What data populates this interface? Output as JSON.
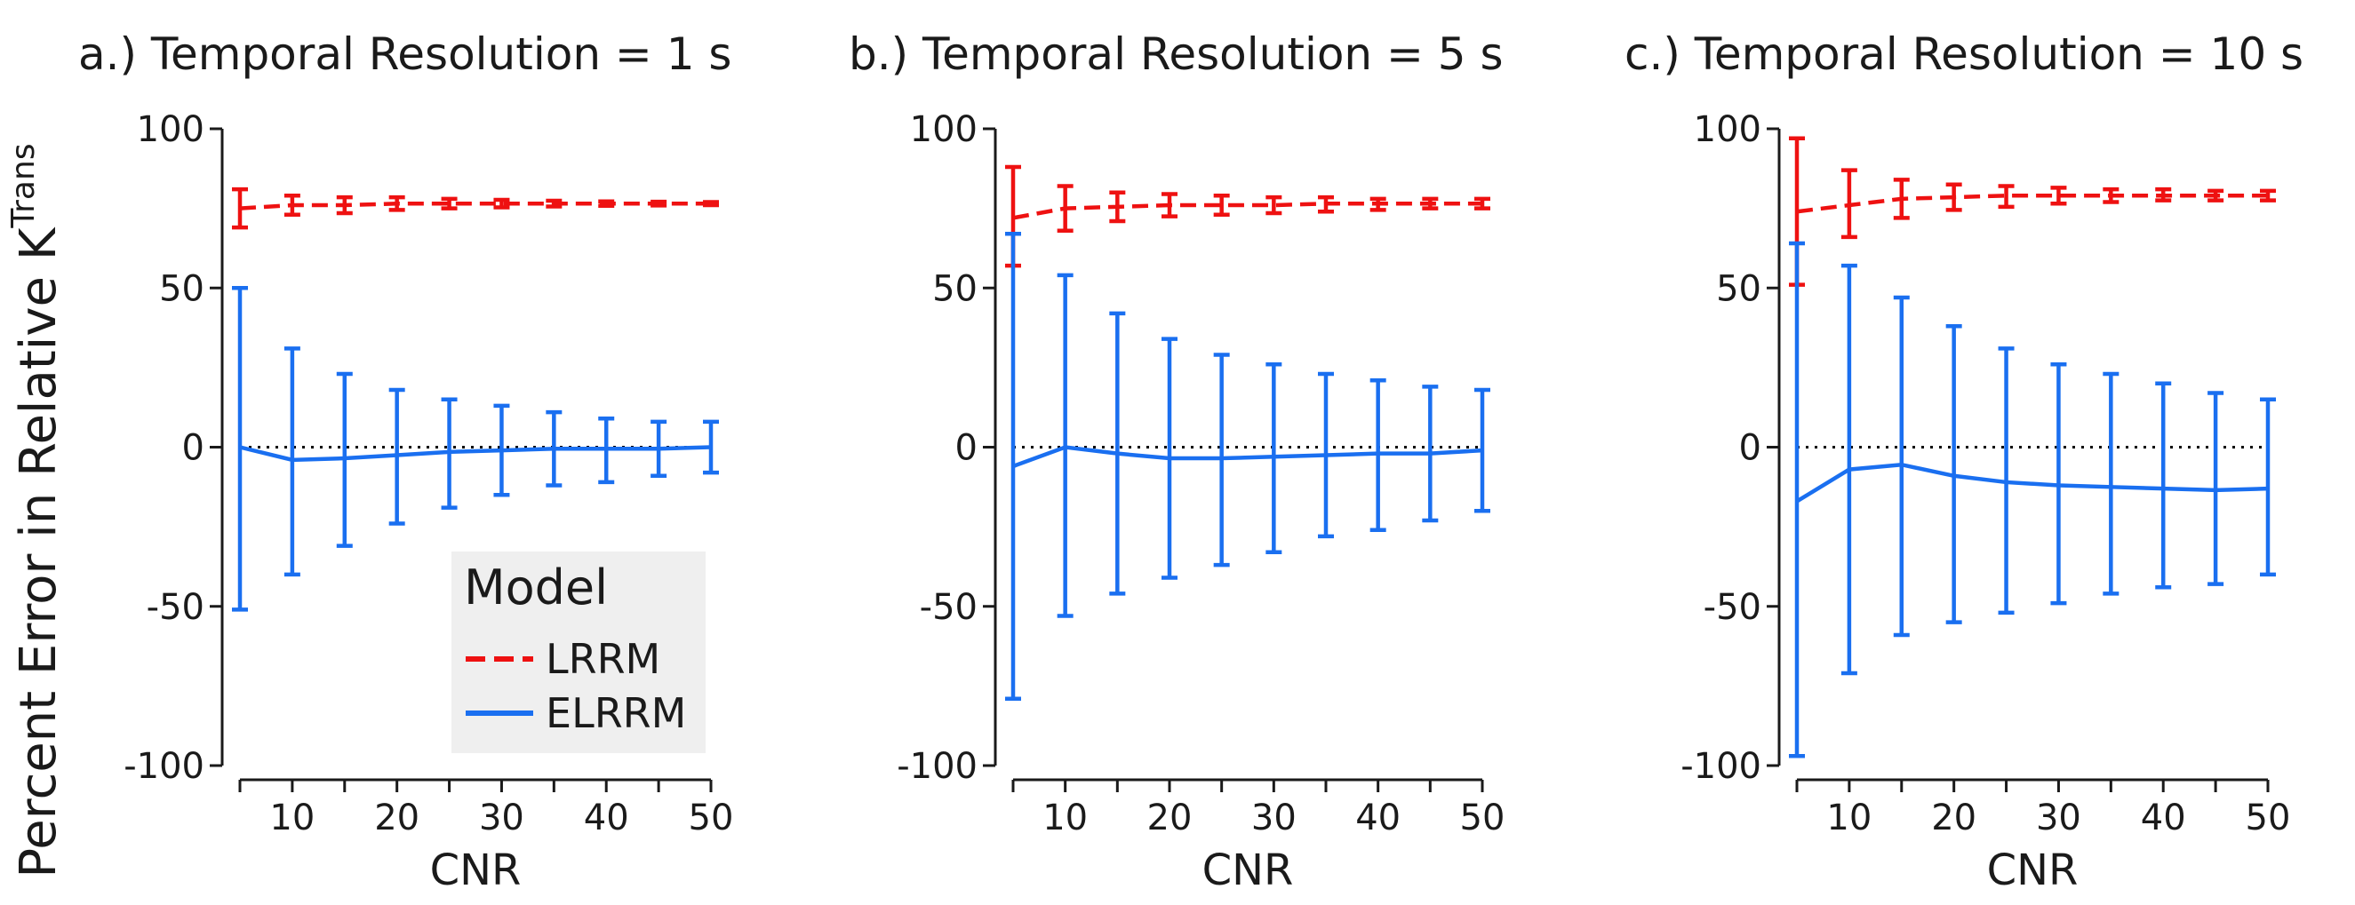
{
  "figure": {
    "ylabel_main": "Percent Error in Relative K",
    "ylabel_sup": "Trans"
  },
  "legend": {
    "title": "Model",
    "items": [
      {
        "label": "LRRM",
        "color": "#ee1111",
        "style": "dashed"
      },
      {
        "label": "ELRRM",
        "color": "#1a6ff0",
        "style": "solid"
      }
    ]
  },
  "colors": {
    "lrrm": "#ee1111",
    "elrrm": "#1a6ff0",
    "axis": "#1a1a1a"
  },
  "chart_data": [
    {
      "type": "line",
      "title": "a.) Temporal Resolution = 1 s",
      "xlabel": "CNR",
      "ylabel": "",
      "x": [
        5,
        10,
        15,
        20,
        25,
        30,
        35,
        40,
        45,
        50
      ],
      "xticks": [
        10,
        20,
        30,
        40,
        50
      ],
      "yticks": [
        -100,
        -50,
        0,
        50,
        100
      ],
      "ylim": [
        -100,
        100
      ],
      "xlim": [
        5,
        50
      ],
      "zero_line": true,
      "series": [
        {
          "name": "LRRM",
          "values": [
            75,
            76,
            76,
            76.5,
            76.5,
            76.5,
            76.5,
            76.5,
            76.5,
            76.5
          ],
          "err_low": [
            69,
            73,
            73.5,
            74.5,
            75,
            75.3,
            75.6,
            75.8,
            75.9,
            76
          ],
          "err_high": [
            81,
            79,
            78.5,
            78.5,
            78,
            77.7,
            77.4,
            77.2,
            77.1,
            77
          ]
        },
        {
          "name": "ELRRM",
          "values": [
            0,
            -4,
            -3.5,
            -2.5,
            -1.5,
            -1,
            -0.5,
            -0.5,
            -0.5,
            0
          ],
          "err_low": [
            -51,
            -40,
            -31,
            -24,
            -19,
            -15,
            -12,
            -11,
            -9,
            -8
          ],
          "err_high": [
            50,
            31,
            23,
            18,
            15,
            13,
            11,
            9,
            8,
            8
          ]
        }
      ]
    },
    {
      "type": "line",
      "title": "b.) Temporal Resolution = 5 s",
      "xlabel": "CNR",
      "ylabel": "",
      "x": [
        5,
        10,
        15,
        20,
        25,
        30,
        35,
        40,
        45,
        50
      ],
      "xticks": [
        10,
        20,
        30,
        40,
        50
      ],
      "yticks": [
        -100,
        -50,
        0,
        50,
        100
      ],
      "ylim": [
        -100,
        100
      ],
      "xlim": [
        5,
        50
      ],
      "zero_line": true,
      "series": [
        {
          "name": "LRRM",
          "values": [
            72,
            75,
            75.5,
            76,
            76,
            76,
            76.5,
            76.5,
            76.5,
            76.5
          ],
          "err_low": [
            57,
            68,
            71,
            72.5,
            73,
            73.5,
            74,
            74.5,
            75,
            75
          ],
          "err_high": [
            88,
            82,
            80,
            79.5,
            79,
            78.5,
            78.5,
            78,
            78,
            78
          ]
        },
        {
          "name": "ELRRM",
          "values": [
            -6,
            0,
            -2,
            -3.5,
            -3.5,
            -3,
            -2.5,
            -2,
            -2,
            -1
          ],
          "err_low": [
            -79,
            -53,
            -46,
            -41,
            -37,
            -33,
            -28,
            -26,
            -23,
            -20
          ],
          "err_high": [
            67,
            54,
            42,
            34,
            29,
            26,
            23,
            21,
            19,
            18
          ]
        }
      ]
    },
    {
      "type": "line",
      "title": "c.) Temporal Resolution = 10 s",
      "xlabel": "CNR",
      "ylabel": "",
      "x": [
        5,
        10,
        15,
        20,
        25,
        30,
        35,
        40,
        45,
        50
      ],
      "xticks": [
        10,
        20,
        30,
        40,
        50
      ],
      "yticks": [
        -100,
        -50,
        0,
        50,
        100
      ],
      "ylim": [
        -100,
        100
      ],
      "xlim": [
        5,
        50
      ],
      "zero_line": true,
      "series": [
        {
          "name": "LRRM",
          "values": [
            74,
            76,
            78,
            78.5,
            79,
            79,
            79,
            79,
            79,
            79
          ],
          "err_low": [
            51,
            66,
            72,
            74.5,
            75.5,
            76.5,
            77,
            77.5,
            77.5,
            77.5
          ],
          "err_high": [
            97,
            87,
            84,
            82.5,
            82,
            81.5,
            81,
            81,
            80.5,
            80.5
          ]
        },
        {
          "name": "ELRRM",
          "values": [
            -17,
            -7,
            -5.5,
            -9,
            -11,
            -12,
            -12.5,
            -13,
            -13.5,
            -13
          ],
          "err_low": [
            -97,
            -71,
            -59,
            -55,
            -52,
            -49,
            -46,
            -44,
            -43,
            -40
          ],
          "err_high": [
            64,
            57,
            47,
            38,
            31,
            26,
            23,
            20,
            17,
            15
          ]
        }
      ]
    }
  ]
}
